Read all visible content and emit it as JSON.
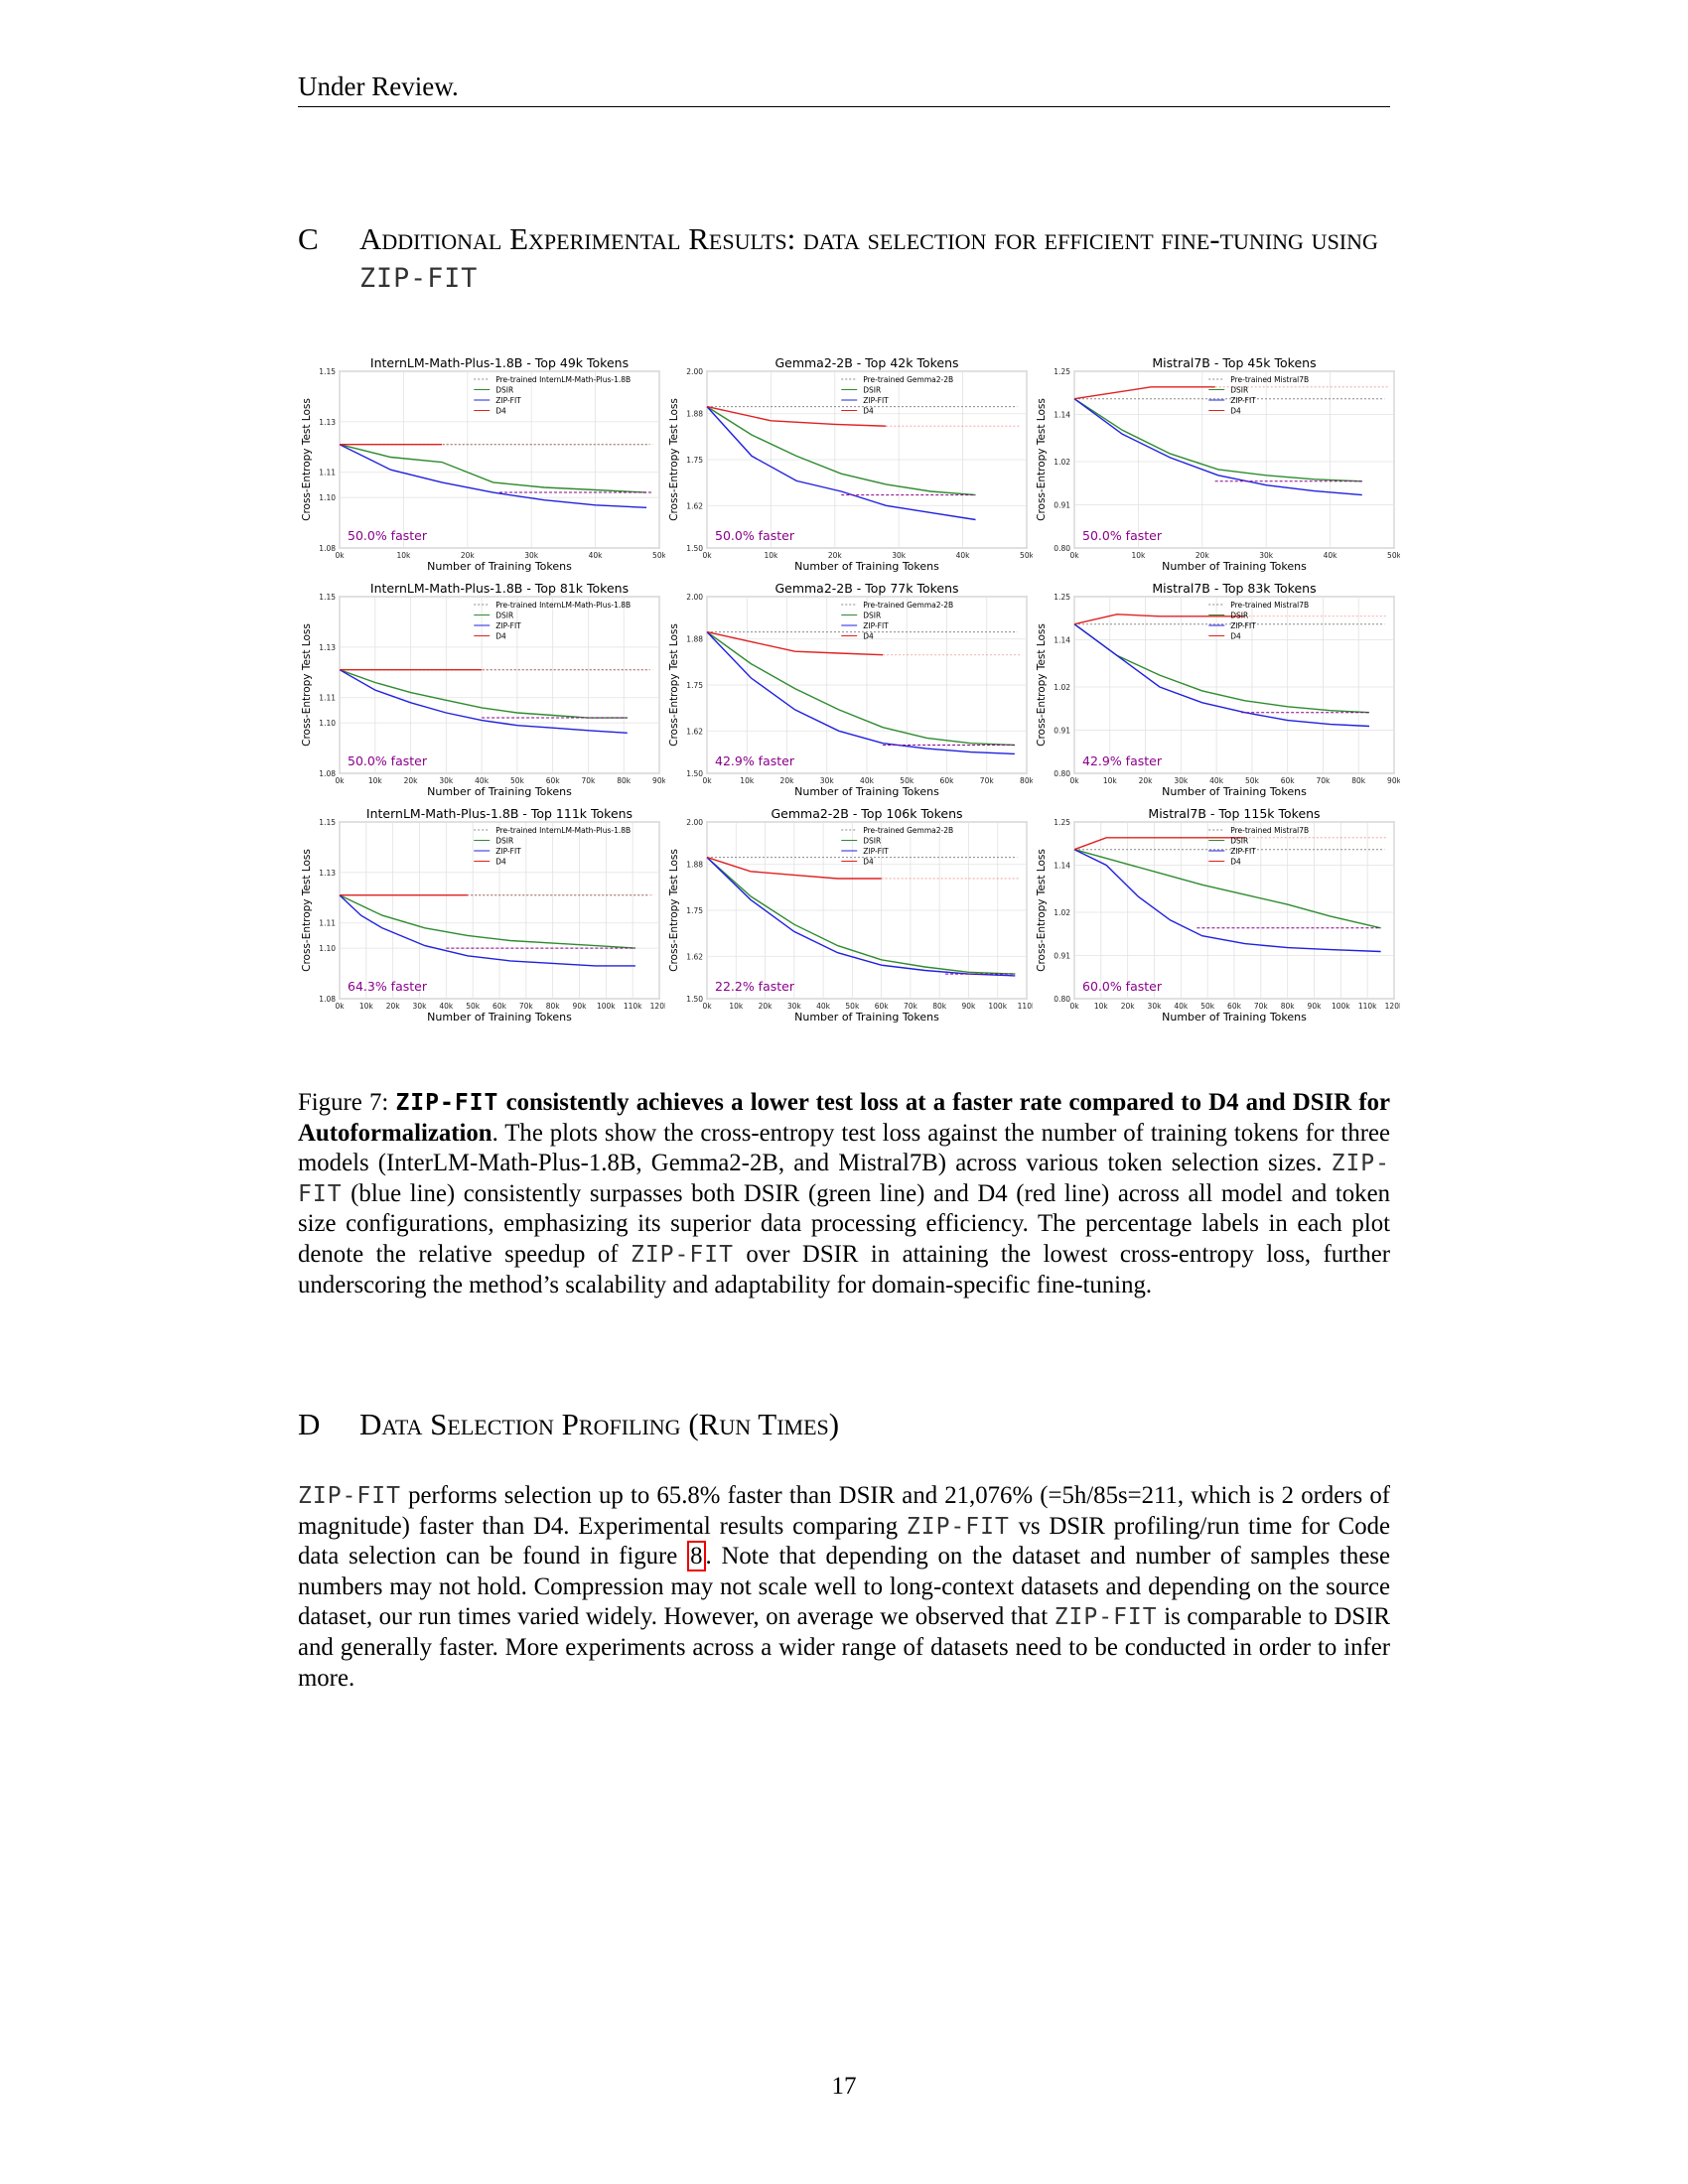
{
  "header": {
    "text": "Under Review."
  },
  "section_c": {
    "number": "C",
    "title_prefix": "Additional Experimental Results: data selection for efficient fine-tuning using ",
    "title_method": "ZIP-FIT"
  },
  "figure": {
    "x_axis_label": "Number of Training Tokens",
    "y_axis_label": "Cross-Entropy Test Loss",
    "legend_labels": [
      "DSIR",
      "ZIP-FIT",
      "D4"
    ],
    "colors": {
      "pretrained": "#8a8a8a",
      "dsir": "#2e8b2e",
      "zipfit": "#2020e0",
      "d4": "#e02020",
      "faster_label": "#8b008b"
    }
  },
  "chart_data": [
    {
      "type": "line",
      "title": "InternLM-Math-Plus-1.8B - Top 49k Tokens",
      "pretrained_label": "Pre-trained InternLM-Math-Plus-1.8B",
      "ylim": [
        1.08,
        1.15
      ],
      "yticks": [
        "1.08",
        "1.10",
        "1.11",
        "1.13",
        "1.15"
      ],
      "xlim": [
        0,
        50
      ],
      "xticks": [
        "0k",
        "10k",
        "20k",
        "30k",
        "40k",
        "50k"
      ],
      "pretrained": 1.121,
      "faster": "50.0% faster",
      "dsir_end": [
        25,
        49
      ],
      "series": [
        {
          "name": "DSIR",
          "x": [
            0,
            8,
            16,
            24,
            32,
            40,
            48
          ],
          "y": [
            1.121,
            1.116,
            1.114,
            1.106,
            1.104,
            1.103,
            1.102
          ]
        },
        {
          "name": "ZIP-FIT",
          "x": [
            0,
            8,
            16,
            24,
            32,
            40,
            48
          ],
          "y": [
            1.121,
            1.111,
            1.106,
            1.102,
            1.099,
            1.097,
            1.096
          ]
        },
        {
          "name": "D4",
          "x": [
            0,
            8,
            16
          ],
          "y": [
            1.121,
            1.121,
            1.121
          ]
        }
      ]
    },
    {
      "type": "line",
      "title": "Gemma2-2B - Top 42k Tokens",
      "pretrained_label": "Pre-trained Gemma2-2B",
      "ylim": [
        1.5,
        2.0
      ],
      "yticks": [
        "1.50",
        "1.62",
        "1.75",
        "1.88",
        "2.00"
      ],
      "xlim": [
        0,
        50
      ],
      "xticks": [
        "0k",
        "10k",
        "20k",
        "30k",
        "40k",
        "50k"
      ],
      "pretrained": 1.9,
      "faster": "50.0% faster",
      "dsir_end": [
        21,
        42
      ],
      "series": [
        {
          "name": "DSIR",
          "x": [
            0,
            7,
            14,
            21,
            28,
            35,
            42
          ],
          "y": [
            1.9,
            1.82,
            1.76,
            1.71,
            1.68,
            1.66,
            1.65
          ]
        },
        {
          "name": "ZIP-FIT",
          "x": [
            0,
            7,
            14,
            21,
            28,
            35,
            42
          ],
          "y": [
            1.9,
            1.76,
            1.69,
            1.66,
            1.62,
            1.6,
            1.58
          ]
        },
        {
          "name": "D4",
          "x": [
            0,
            10,
            20,
            28
          ],
          "y": [
            1.9,
            1.86,
            1.85,
            1.845
          ]
        }
      ]
    },
    {
      "type": "line",
      "title": "Mistral7B - Top 45k Tokens",
      "pretrained_label": "Pre-trained Mistral7B",
      "ylim": [
        0.8,
        1.25
      ],
      "yticks": [
        "0.80",
        "0.91",
        "1.02",
        "1.14",
        "1.25"
      ],
      "xlim": [
        0,
        50
      ],
      "xticks": [
        "0k",
        "10k",
        "20k",
        "30k",
        "40k",
        "50k"
      ],
      "pretrained": 1.18,
      "faster": "50.0% faster",
      "dsir_end": [
        22,
        45
      ],
      "series": [
        {
          "name": "DSIR",
          "x": [
            0,
            7.5,
            15,
            22.5,
            30,
            37.5,
            45
          ],
          "y": [
            1.18,
            1.1,
            1.04,
            1.0,
            0.985,
            0.975,
            0.97
          ]
        },
        {
          "name": "ZIP-FIT",
          "x": [
            0,
            7.5,
            15,
            22.5,
            30,
            37.5,
            45
          ],
          "y": [
            1.18,
            1.09,
            1.03,
            0.985,
            0.96,
            0.945,
            0.935
          ]
        },
        {
          "name": "D4",
          "x": [
            0,
            12,
            22
          ],
          "y": [
            1.18,
            1.21,
            1.21
          ]
        }
      ]
    },
    {
      "type": "line",
      "title": "InternLM-Math-Plus-1.8B - Top 81k Tokens",
      "pretrained_label": "Pre-trained InternLM-Math-Plus-1.8B",
      "ylim": [
        1.08,
        1.15
      ],
      "yticks": [
        "1.08",
        "1.10",
        "1.11",
        "1.13",
        "1.15"
      ],
      "xlim": [
        0,
        90
      ],
      "xticks": [
        "0k",
        "10k",
        "20k",
        "30k",
        "40k",
        "50k",
        "60k",
        "70k",
        "80k",
        "90k"
      ],
      "pretrained": 1.121,
      "faster": "50.0% faster",
      "dsir_end": [
        40,
        81
      ],
      "series": [
        {
          "name": "DSIR",
          "x": [
            0,
            10,
            20,
            30,
            40,
            50,
            60,
            70,
            81
          ],
          "y": [
            1.121,
            1.116,
            1.112,
            1.109,
            1.106,
            1.104,
            1.103,
            1.102,
            1.102
          ]
        },
        {
          "name": "ZIP-FIT",
          "x": [
            0,
            10,
            20,
            30,
            40,
            50,
            60,
            70,
            81
          ],
          "y": [
            1.121,
            1.113,
            1.108,
            1.104,
            1.101,
            1.099,
            1.098,
            1.097,
            1.096
          ]
        },
        {
          "name": "D4",
          "x": [
            0,
            20,
            40
          ],
          "y": [
            1.121,
            1.121,
            1.121
          ]
        }
      ]
    },
    {
      "type": "line",
      "title": "Gemma2-2B - Top 77k Tokens",
      "pretrained_label": "Pre-trained Gemma2-2B",
      "ylim": [
        1.5,
        2.0
      ],
      "yticks": [
        "1.50",
        "1.62",
        "1.75",
        "1.88",
        "2.00"
      ],
      "xlim": [
        0,
        80
      ],
      "xticks": [
        "0k",
        "10k",
        "20k",
        "30k",
        "40k",
        "50k",
        "60k",
        "70k",
        "80k"
      ],
      "pretrained": 1.9,
      "faster": "42.9% faster",
      "dsir_end": [
        44,
        77
      ],
      "series": [
        {
          "name": "DSIR",
          "x": [
            0,
            11,
            22,
            33,
            44,
            55,
            66,
            77
          ],
          "y": [
            1.9,
            1.81,
            1.74,
            1.68,
            1.63,
            1.6,
            1.585,
            1.58
          ]
        },
        {
          "name": "ZIP-FIT",
          "x": [
            0,
            11,
            22,
            33,
            44,
            55,
            66,
            77
          ],
          "y": [
            1.9,
            1.77,
            1.68,
            1.62,
            1.585,
            1.57,
            1.56,
            1.555
          ]
        },
        {
          "name": "D4",
          "x": [
            0,
            12,
            22,
            33,
            44
          ],
          "y": [
            1.9,
            1.87,
            1.845,
            1.84,
            1.835
          ]
        }
      ]
    },
    {
      "type": "line",
      "title": "Mistral7B - Top 83k Tokens",
      "pretrained_label": "Pre-trained Mistral7B",
      "ylim": [
        0.8,
        1.25
      ],
      "yticks": [
        "0.80",
        "0.91",
        "1.02",
        "1.14",
        "1.25"
      ],
      "xlim": [
        0,
        90
      ],
      "xticks": [
        "0k",
        "10k",
        "20k",
        "30k",
        "40k",
        "50k",
        "60k",
        "70k",
        "80k",
        "90k"
      ],
      "pretrained": 1.18,
      "faster": "42.9% faster",
      "dsir_end": [
        47,
        83
      ],
      "series": [
        {
          "name": "DSIR",
          "x": [
            0,
            12,
            24,
            36,
            48,
            60,
            72,
            83
          ],
          "y": [
            1.18,
            1.1,
            1.05,
            1.01,
            0.985,
            0.97,
            0.96,
            0.955
          ]
        },
        {
          "name": "ZIP-FIT",
          "x": [
            0,
            12,
            24,
            36,
            48,
            60,
            72,
            83
          ],
          "y": [
            1.18,
            1.1,
            1.02,
            0.98,
            0.955,
            0.935,
            0.925,
            0.92
          ]
        },
        {
          "name": "D4",
          "x": [
            0,
            12,
            24,
            36,
            48
          ],
          "y": [
            1.18,
            1.205,
            1.2,
            1.2,
            1.2
          ]
        }
      ]
    },
    {
      "type": "line",
      "title": "InternLM-Math-Plus-1.8B - Top 111k Tokens",
      "pretrained_label": "Pre-trained InternLM-Math-Plus-1.8B",
      "ylim": [
        1.08,
        1.15
      ],
      "yticks": [
        "1.08",
        "1.10",
        "1.11",
        "1.13",
        "1.15"
      ],
      "xlim": [
        0,
        120
      ],
      "xticks": [
        "0k",
        "10k",
        "20k",
        "30k",
        "40k",
        "50k",
        "60k",
        "70k",
        "80k",
        "90k",
        "100k",
        "110k",
        "120k"
      ],
      "pretrained": 1.121,
      "faster": "64.3% faster",
      "dsir_end": [
        40,
        111
      ],
      "series": [
        {
          "name": "DSIR",
          "x": [
            0,
            16,
            32,
            48,
            64,
            80,
            96,
            111
          ],
          "y": [
            1.121,
            1.113,
            1.108,
            1.105,
            1.103,
            1.102,
            1.101,
            1.1
          ]
        },
        {
          "name": "ZIP-FIT",
          "x": [
            0,
            8,
            16,
            32,
            48,
            64,
            80,
            96,
            111
          ],
          "y": [
            1.121,
            1.113,
            1.108,
            1.101,
            1.097,
            1.095,
            1.094,
            1.093,
            1.093
          ]
        },
        {
          "name": "D4",
          "x": [
            0,
            24,
            48
          ],
          "y": [
            1.121,
            1.121,
            1.121
          ]
        }
      ]
    },
    {
      "type": "line",
      "title": "Gemma2-2B - Top 106k Tokens",
      "pretrained_label": "Pre-trained Gemma2-2B",
      "ylim": [
        1.5,
        2.0
      ],
      "yticks": [
        "1.50",
        "1.62",
        "1.75",
        "1.88",
        "2.00"
      ],
      "xlim": [
        0,
        110
      ],
      "xticks": [
        "0k",
        "10k",
        "20k",
        "30k",
        "40k",
        "50k",
        "60k",
        "70k",
        "80k",
        "90k",
        "100k",
        "110k"
      ],
      "pretrained": 1.9,
      "faster": "22.2% faster",
      "dsir_end": [
        82,
        106
      ],
      "series": [
        {
          "name": "DSIR",
          "x": [
            0,
            15,
            30,
            45,
            60,
            75,
            90,
            106
          ],
          "y": [
            1.9,
            1.79,
            1.71,
            1.65,
            1.61,
            1.59,
            1.575,
            1.57
          ]
        },
        {
          "name": "ZIP-FIT",
          "x": [
            0,
            15,
            30,
            45,
            60,
            75,
            90,
            106
          ],
          "y": [
            1.9,
            1.78,
            1.69,
            1.63,
            1.595,
            1.58,
            1.57,
            1.565
          ]
        },
        {
          "name": "D4",
          "x": [
            0,
            15,
            30,
            45,
            60
          ],
          "y": [
            1.9,
            1.86,
            1.85,
            1.84,
            1.84
          ]
        }
      ]
    },
    {
      "type": "line",
      "title": "Mistral7B - Top 115k Tokens",
      "pretrained_label": "Pre-trained Mistral7B",
      "ylim": [
        0.8,
        1.25
      ],
      "yticks": [
        "0.80",
        "0.91",
        "1.02",
        "1.14",
        "1.25"
      ],
      "xlim": [
        0,
        120
      ],
      "xticks": [
        "0k",
        "10k",
        "20k",
        "30k",
        "40k",
        "50k",
        "60k",
        "70k",
        "80k",
        "90k",
        "100k",
        "110k",
        "120k"
      ],
      "pretrained": 1.18,
      "faster": "60.0% faster",
      "dsir_end": [
        46,
        115
      ],
      "series": [
        {
          "name": "DSIR",
          "x": [
            0,
            16,
            32,
            48,
            64,
            80,
            96,
            115
          ],
          "y": [
            1.18,
            1.15,
            1.12,
            1.09,
            1.065,
            1.04,
            1.01,
            0.98
          ]
        },
        {
          "name": "ZIP-FIT",
          "x": [
            0,
            12,
            24,
            36,
            48,
            64,
            80,
            96,
            115
          ],
          "y": [
            1.18,
            1.14,
            1.06,
            1.0,
            0.96,
            0.94,
            0.93,
            0.925,
            0.92
          ]
        },
        {
          "name": "D4",
          "x": [
            0,
            12,
            24,
            36,
            48,
            64
          ],
          "y": [
            1.18,
            1.21,
            1.21,
            1.21,
            1.21,
            1.21
          ]
        }
      ]
    }
  ],
  "caption": {
    "label": "Figure 7:",
    "bold_method": "ZIP-FIT",
    "bold_rest": " consistently achieves a lower test loss at a faster rate compared to D4 and DSIR for Autoformalization",
    "t1": ". The plots show the cross-entropy test loss against the number of training tokens for three models (InterLM-Math-Plus-1.8B, Gemma2-2B, and Mistral7B) across various token selection sizes. ",
    "m1": "ZIP-FIT",
    "t2": " (blue line) consistently surpasses both DSIR (green line) and D4 (red line) across all model and token size configurations, emphasizing its superior data processing efficiency. The percentage labels in each plot denote the relative speedup of ",
    "m2": "ZIP-FIT",
    "t3": " over DSIR in attaining the lowest cross-entropy loss, further underscoring the method’s scalability and adaptability for domain-specific fine-tuning."
  },
  "section_d": {
    "number": "D",
    "title": "Data Selection Profiling (Run Times)"
  },
  "body_d": {
    "m1": "ZIP-FIT",
    "t1": " performs selection up to 65.8% faster than DSIR and 21,076% (=5h/85s=211, which is 2 orders of magnitude) faster than D4. Experimental results comparing ",
    "m2": "ZIP-FIT",
    "t2": " vs DSIR profiling/run time for Code data selection can be found in figure ",
    "ref": "8",
    "t3": ". Note that depending on the dataset and number of samples these numbers may not hold. Compression may not scale well to long-context datasets and depending on the source dataset, our run times varied widely. However, on average we observed that ",
    "m3": "ZIP-FIT",
    "t4": " is comparable to DSIR and generally faster. More experiments across a wider range of datasets need to be conducted in order to infer more."
  },
  "page_number": "17"
}
